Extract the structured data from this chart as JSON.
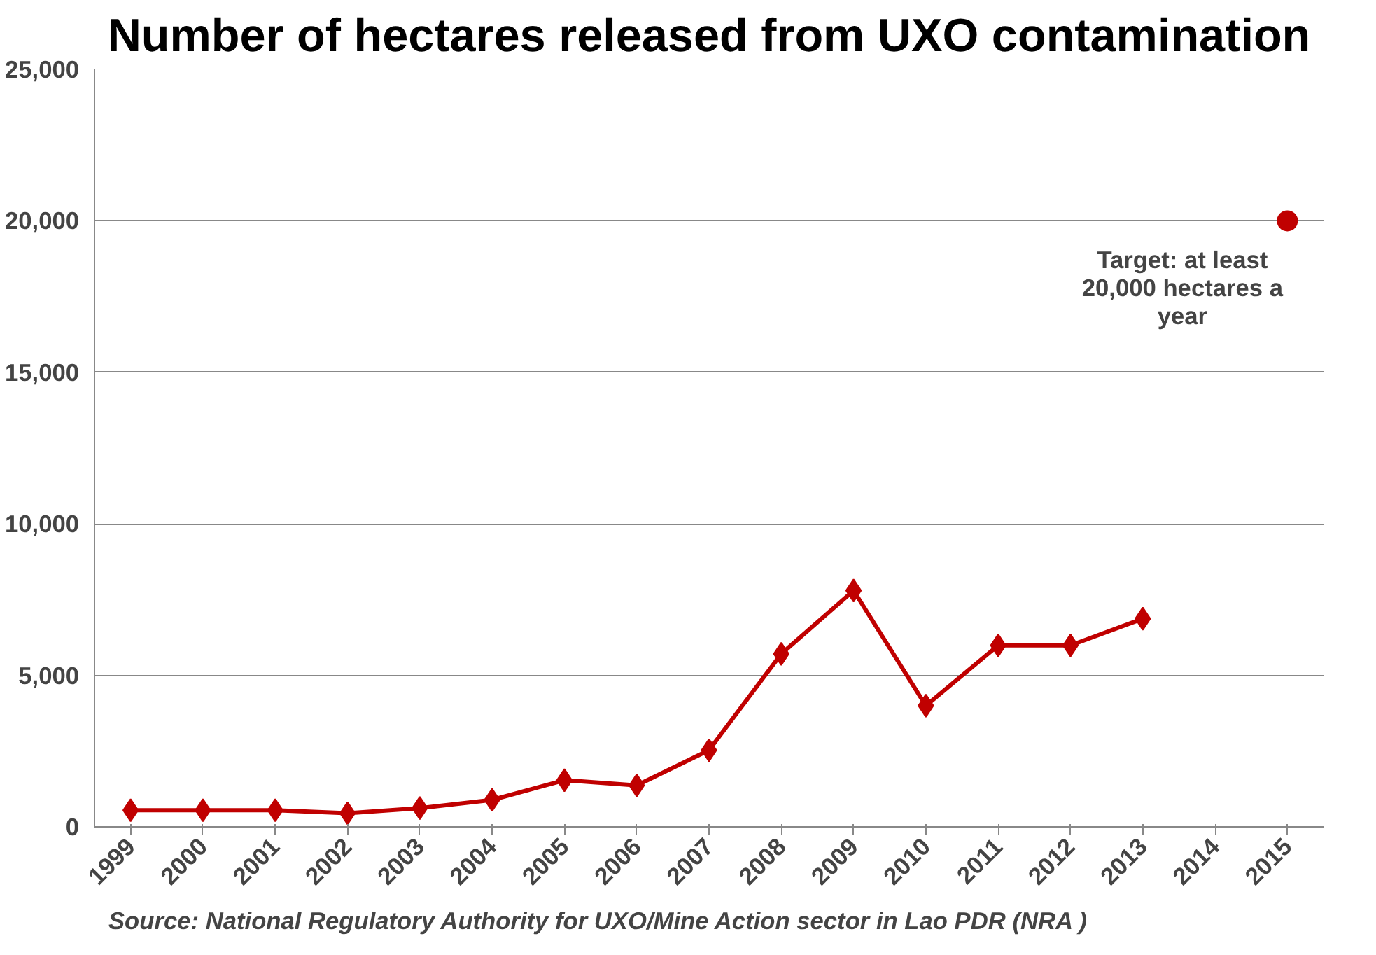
{
  "chart_data": {
    "type": "line",
    "title": "Number of hectares released from UXO contamination",
    "categories": [
      "1999",
      "2000",
      "2001",
      "2002",
      "2003",
      "2004",
      "2005",
      "2006",
      "2007",
      "2008",
      "2009",
      "2010",
      "2011",
      "2012",
      "2013",
      "2014",
      "2015"
    ],
    "series": [
      {
        "marker": "diamond",
        "color": "#c00000",
        "values": [
          550,
          550,
          550,
          450,
          620,
          890,
          1540,
          1370,
          2530,
          5710,
          7800,
          4000,
          5990,
          5990,
          6870,
          null,
          null
        ]
      },
      {
        "type": "scatter",
        "marker": "circle",
        "color": "#c00000",
        "values": [
          null,
          null,
          null,
          null,
          null,
          null,
          null,
          null,
          null,
          null,
          null,
          null,
          null,
          null,
          null,
          null,
          20000
        ]
      }
    ],
    "ylim": [
      0,
      25000
    ],
    "yticks": [
      {
        "value": 0,
        "label": "0"
      },
      {
        "value": 5000,
        "label": "5,000"
      },
      {
        "value": 10000,
        "label": "10,000"
      },
      {
        "value": 15000,
        "label": "15,000"
      },
      {
        "value": 20000,
        "label": "20,000"
      },
      {
        "value": 25000,
        "label": "25,000"
      }
    ],
    "grid": "y",
    "line_style": "solid",
    "annotations": [
      {
        "text": "Target: at least\n20,000 hectares a\nyear",
        "x": "2015",
        "y": 20000
      },
      "Source:  National Regulatory Authority for UXO/Mine Action sector in Lao PDR (NRA )"
    ]
  }
}
